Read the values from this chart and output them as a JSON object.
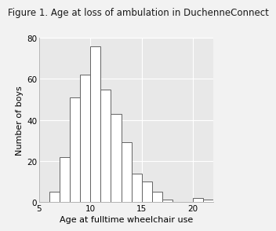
{
  "title": "Figure 1. Age at loss of ambulation in DuchenneConnect",
  "xlabel": "Age at fulltime wheelchair use",
  "ylabel": "Number of boys",
  "bar_left_edges": [
    6,
    7,
    8,
    9,
    10,
    11,
    12,
    13,
    14,
    15,
    16,
    17,
    18,
    19,
    20,
    21
  ],
  "bar_heights": [
    5,
    22,
    51,
    62,
    76,
    55,
    43,
    29,
    14,
    10,
    5,
    1,
    0,
    0,
    2,
    1
  ],
  "bar_width": 1,
  "xlim": [
    5,
    22
  ],
  "ylim": [
    0,
    80
  ],
  "yticks": [
    0,
    20,
    40,
    60,
    80
  ],
  "xticks": [
    5,
    10,
    15,
    20
  ],
  "bar_facecolor": "#ffffff",
  "bar_edgecolor": "#636363",
  "background_color": "#e8e8e8",
  "fig_background_color": "#f2f2f2",
  "grid_color": "#ffffff",
  "title_fontsize": 8.5,
  "axis_label_fontsize": 8,
  "tick_fontsize": 7.5
}
